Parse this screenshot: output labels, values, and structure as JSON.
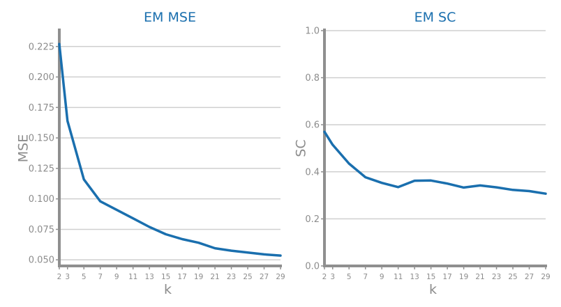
{
  "chart_data": [
    {
      "type": "line",
      "title": "EM MSE",
      "xlabel": "k",
      "ylabel": "MSE",
      "x": [
        2,
        3,
        5,
        7,
        9,
        11,
        13,
        15,
        17,
        19,
        21,
        23,
        25,
        27,
        29
      ],
      "xticks": [
        2,
        3,
        5,
        7,
        9,
        11,
        13,
        15,
        17,
        19,
        21,
        23,
        25,
        27,
        29
      ],
      "yticks": [
        0.05,
        0.075,
        0.1,
        0.125,
        0.15,
        0.175,
        0.2,
        0.225
      ],
      "ytick_labels": [
        "0.050",
        "0.075",
        "0.100",
        "0.125",
        "0.150",
        "0.175",
        "0.200",
        "0.225"
      ],
      "ylim": [
        0.045,
        0.238
      ],
      "xlim": [
        2,
        29
      ],
      "grid": true,
      "series": [
        {
          "values": [
            0.227,
            0.164,
            0.116,
            0.098,
            0.091,
            0.084,
            0.077,
            0.071,
            0.067,
            0.064,
            0.0595,
            0.0575,
            0.056,
            0.0545,
            0.0535
          ],
          "color": "#1a6fae"
        }
      ]
    },
    {
      "type": "line",
      "title": "EM SC",
      "xlabel": "k",
      "ylabel": "SC",
      "x": [
        2,
        3,
        5,
        7,
        9,
        11,
        13,
        15,
        17,
        19,
        21,
        23,
        25,
        27,
        29
      ],
      "xticks": [
        2,
        3,
        5,
        7,
        9,
        11,
        13,
        15,
        17,
        19,
        21,
        23,
        25,
        27,
        29
      ],
      "yticks": [
        0.0,
        0.2,
        0.4,
        0.6,
        0.8,
        1.0
      ],
      "ytick_labels": [
        "0.0",
        "0.2",
        "0.4",
        "0.6",
        "0.8",
        "1.0"
      ],
      "ylim": [
        0.0,
        1.0
      ],
      "xlim": [
        2,
        29
      ],
      "grid": true,
      "series": [
        {
          "values": [
            0.57,
            0.515,
            0.435,
            0.377,
            0.353,
            0.335,
            0.362,
            0.363,
            0.35,
            0.333,
            0.342,
            0.334,
            0.323,
            0.318,
            0.307
          ],
          "color": "#1a6fae"
        }
      ]
    }
  ]
}
